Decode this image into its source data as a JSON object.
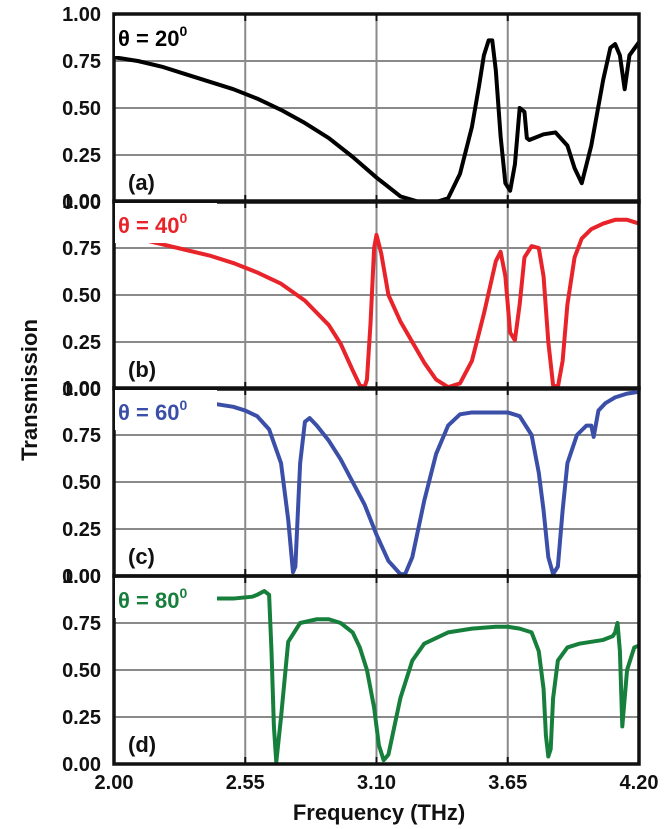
{
  "chart_data": {
    "type": "line",
    "xlabel": "Frequency (THz)",
    "ylabel": "Transmission",
    "xlim": [
      2.0,
      4.2
    ],
    "ylim": [
      0.0,
      1.0
    ],
    "xticks": [
      "2.00",
      "2.55",
      "3.10",
      "3.65",
      "4.20"
    ],
    "xtick_values": [
      2.0,
      2.55,
      3.1,
      3.65,
      4.2
    ],
    "yticks": [
      "0.00",
      "0.25",
      "0.50",
      "0.75",
      "1.00"
    ],
    "ytick_values": [
      0.0,
      0.25,
      0.5,
      0.75,
      1.0
    ],
    "grid": true,
    "panels": [
      {
        "label": "(a)",
        "angle_text": "θ = 20",
        "angle_sup": "0",
        "color": "#000000",
        "x": [
          2.0,
          2.1,
          2.2,
          2.3,
          2.4,
          2.5,
          2.6,
          2.7,
          2.8,
          2.9,
          3.0,
          3.1,
          3.2,
          3.28,
          3.35,
          3.4,
          3.45,
          3.5,
          3.53,
          3.55,
          3.57,
          3.585,
          3.6,
          3.62,
          3.64,
          3.66,
          3.68,
          3.7,
          3.72,
          3.73,
          3.74,
          3.76,
          3.8,
          3.85,
          3.9,
          3.93,
          3.96,
          4.0,
          4.05,
          4.08,
          4.1,
          4.12,
          4.14,
          4.16,
          4.2
        ],
        "y": [
          0.77,
          0.75,
          0.72,
          0.68,
          0.64,
          0.6,
          0.55,
          0.49,
          0.42,
          0.34,
          0.24,
          0.13,
          0.03,
          0.0,
          0.0,
          0.02,
          0.15,
          0.4,
          0.62,
          0.78,
          0.86,
          0.86,
          0.7,
          0.35,
          0.1,
          0.06,
          0.2,
          0.5,
          0.48,
          0.34,
          0.33,
          0.34,
          0.36,
          0.37,
          0.3,
          0.18,
          0.1,
          0.3,
          0.65,
          0.82,
          0.84,
          0.78,
          0.6,
          0.78,
          0.85
        ]
      },
      {
        "label": "(b)",
        "angle_text": "θ = 40",
        "angle_sup": "0",
        "color": "#e8242a",
        "x": [
          2.0,
          2.1,
          2.2,
          2.3,
          2.4,
          2.5,
          2.6,
          2.7,
          2.8,
          2.9,
          2.95,
          3.0,
          3.03,
          3.05,
          3.06,
          3.075,
          3.09,
          3.1,
          3.12,
          3.15,
          3.2,
          3.25,
          3.3,
          3.35,
          3.4,
          3.45,
          3.5,
          3.55,
          3.6,
          3.62,
          3.64,
          3.66,
          3.68,
          3.7,
          3.72,
          3.75,
          3.78,
          3.8,
          3.82,
          3.84,
          3.86,
          3.88,
          3.9,
          3.93,
          3.96,
          4.0,
          4.05,
          4.1,
          4.15,
          4.2
        ],
        "y": [
          0.82,
          0.8,
          0.77,
          0.74,
          0.71,
          0.67,
          0.62,
          0.56,
          0.47,
          0.34,
          0.24,
          0.1,
          0.02,
          0.01,
          0.05,
          0.35,
          0.75,
          0.82,
          0.72,
          0.5,
          0.36,
          0.25,
          0.14,
          0.05,
          0.01,
          0.03,
          0.15,
          0.4,
          0.68,
          0.73,
          0.6,
          0.3,
          0.26,
          0.45,
          0.7,
          0.76,
          0.75,
          0.6,
          0.25,
          0.02,
          0.01,
          0.15,
          0.45,
          0.7,
          0.8,
          0.85,
          0.88,
          0.9,
          0.9,
          0.88
        ]
      },
      {
        "label": "(c)",
        "angle_text": "θ = 60",
        "angle_sup": "0",
        "color": "#3b4fa8",
        "x": [
          2.0,
          2.1,
          2.2,
          2.3,
          2.4,
          2.5,
          2.55,
          2.6,
          2.65,
          2.7,
          2.73,
          2.75,
          2.76,
          2.78,
          2.8,
          2.82,
          2.85,
          2.9,
          2.95,
          3.0,
          3.05,
          3.1,
          3.15,
          3.2,
          3.22,
          3.25,
          3.3,
          3.35,
          3.4,
          3.45,
          3.5,
          3.55,
          3.6,
          3.65,
          3.7,
          3.75,
          3.78,
          3.8,
          3.82,
          3.84,
          3.86,
          3.88,
          3.9,
          3.94,
          3.98,
          4.0,
          4.01,
          4.03,
          4.06,
          4.1,
          4.15,
          4.2
        ],
        "y": [
          0.96,
          0.95,
          0.94,
          0.93,
          0.92,
          0.9,
          0.88,
          0.85,
          0.78,
          0.6,
          0.3,
          0.02,
          0.05,
          0.6,
          0.82,
          0.84,
          0.8,
          0.72,
          0.62,
          0.5,
          0.38,
          0.22,
          0.08,
          0.01,
          0.01,
          0.1,
          0.4,
          0.65,
          0.8,
          0.86,
          0.87,
          0.87,
          0.87,
          0.87,
          0.85,
          0.75,
          0.55,
          0.35,
          0.1,
          0.01,
          0.05,
          0.35,
          0.6,
          0.75,
          0.8,
          0.8,
          0.74,
          0.88,
          0.92,
          0.95,
          0.97,
          0.98
        ]
      },
      {
        "label": "(d)",
        "angle_text": "θ = 80",
        "angle_sup": "0",
        "color": "#177f3c",
        "x": [
          2.0,
          2.1,
          2.2,
          2.3,
          2.4,
          2.5,
          2.58,
          2.6,
          2.63,
          2.65,
          2.66,
          2.67,
          2.68,
          2.7,
          2.73,
          2.78,
          2.85,
          2.9,
          2.95,
          3.0,
          3.03,
          3.06,
          3.09,
          3.11,
          3.13,
          3.15,
          3.2,
          3.25,
          3.3,
          3.4,
          3.5,
          3.6,
          3.65,
          3.7,
          3.75,
          3.78,
          3.8,
          3.81,
          3.82,
          3.83,
          3.84,
          3.86,
          3.9,
          3.95,
          4.0,
          4.05,
          4.09,
          4.1,
          4.11,
          4.12,
          4.13,
          4.15,
          4.18,
          4.2
        ],
        "y": [
          0.88,
          0.88,
          0.88,
          0.88,
          0.88,
          0.88,
          0.89,
          0.9,
          0.92,
          0.9,
          0.6,
          0.2,
          0.01,
          0.25,
          0.65,
          0.75,
          0.77,
          0.77,
          0.75,
          0.7,
          0.62,
          0.5,
          0.3,
          0.1,
          0.02,
          0.05,
          0.35,
          0.55,
          0.64,
          0.7,
          0.72,
          0.73,
          0.73,
          0.72,
          0.7,
          0.6,
          0.4,
          0.15,
          0.04,
          0.08,
          0.35,
          0.55,
          0.62,
          0.64,
          0.65,
          0.66,
          0.68,
          0.7,
          0.75,
          0.6,
          0.2,
          0.5,
          0.62,
          0.63
        ]
      }
    ]
  }
}
